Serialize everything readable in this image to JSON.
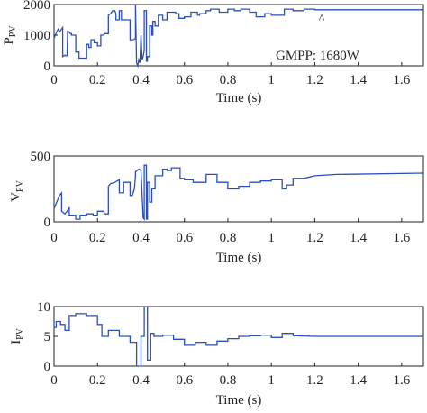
{
  "chart_data": [
    {
      "type": "line",
      "ylabel": "P",
      "ylabel_sub": "PV",
      "xlabel": "Time (s)",
      "xlim": [
        0,
        1.7
      ],
      "ylim": [
        0,
        2000
      ],
      "xticks": [
        0,
        0.2,
        0.4,
        0.6,
        0.8,
        1,
        1.2,
        1.4,
        1.6
      ],
      "xtick_labels": [
        "0",
        "0.2",
        "0.4",
        "0.6",
        "0.8",
        "1",
        "1.2",
        "1.4",
        "1.6"
      ],
      "yticks": [
        0,
        1000,
        2000
      ],
      "ytick_labels": [
        "0",
        "1000",
        "2000"
      ],
      "annotation": "GMPP: 1680W",
      "caret_marker": {
        "x": 1.23,
        "y": 1820,
        "symbol": "^"
      },
      "grid": false,
      "series": [
        {
          "color": "#2b4fb8",
          "x": [
            0,
            0.015,
            0.02,
            0.025,
            0.04,
            0.04,
            0.05,
            0.055,
            0.06,
            0.062,
            0.07,
            0.075,
            0.08,
            0.08,
            0.1,
            0.1,
            0.115,
            0.115,
            0.13,
            0.13,
            0.15,
            0.15,
            0.16,
            0.16,
            0.17,
            0.17,
            0.185,
            0.185,
            0.2,
            0.2,
            0.215,
            0.215,
            0.23,
            0.23,
            0.25,
            0.25,
            0.25,
            0.26,
            0.265,
            0.27,
            0.28,
            0.285,
            0.285,
            0.3,
            0.3,
            0.31,
            0.31,
            0.35,
            0.35,
            0.365,
            0.375,
            0.375,
            0.38,
            0.385,
            0.39,
            0.395,
            0.4,
            0.405,
            0.41,
            0.415,
            0.415,
            0.425,
            0.425,
            0.43,
            0.43,
            0.44,
            0.44,
            0.44,
            0.45,
            0.45,
            0.455,
            0.455,
            0.465,
            0.465,
            0.48,
            0.48,
            0.5,
            0.5,
            0.52,
            0.52,
            0.56,
            0.56,
            0.575,
            0.575,
            0.6,
            0.6,
            0.63,
            0.63,
            0.66,
            0.66,
            0.67,
            0.67,
            0.7,
            0.7,
            0.72,
            0.72,
            0.76,
            0.76,
            0.8,
            0.8,
            0.83,
            0.83,
            0.86,
            0.86,
            0.9,
            0.9,
            0.93,
            0.93,
            0.97,
            0.97,
            1.0,
            1.0,
            1.04,
            1.04,
            1.06,
            1.06,
            1.1,
            1.1,
            1.15,
            1.15,
            1.2,
            1.2,
            1.7
          ],
          "values": [
            900,
            1150,
            1200,
            1100,
            1250,
            300,
            350,
            320,
            330,
            1120,
            1100,
            1050,
            1050,
            1000,
            1000,
            450,
            450,
            250,
            250,
            250,
            250,
            700,
            700,
            600,
            600,
            850,
            850,
            750,
            750,
            650,
            650,
            1000,
            1000,
            1050,
            1050,
            1550,
            1650,
            1700,
            1750,
            1800,
            1800,
            1700,
            1500,
            1500,
            1800,
            1800,
            1500,
            1500,
            850,
            850,
            900,
            2000,
            100,
            0,
            200,
            100,
            1000,
            200,
            300,
            500,
            1800,
            1800,
            150,
            150,
            300,
            300,
            1300,
            1300,
            1300,
            1000,
            1000,
            1450,
            1450,
            1300,
            1300,
            1650,
            1650,
            1500,
            1500,
            1750,
            1750,
            1700,
            1700,
            1550,
            1550,
            1600,
            1600,
            1750,
            1750,
            1650,
            1650,
            1700,
            1700,
            1800,
            1800,
            1850,
            1850,
            1750,
            1750,
            1850,
            1850,
            1800,
            1800,
            1850,
            1850,
            1750,
            1750,
            1600,
            1600,
            1700,
            1700,
            1650,
            1650,
            1650,
            1650,
            1850,
            1850,
            1800,
            1800,
            1850,
            1850,
            1830,
            1830
          ]
        }
      ]
    },
    {
      "type": "line",
      "ylabel": "V",
      "ylabel_sub": "PV",
      "xlabel": "Time (s)",
      "xlim": [
        0,
        1.7
      ],
      "ylim": [
        0,
        500
      ],
      "xticks": [
        0,
        0.2,
        0.4,
        0.6,
        0.8,
        1,
        1.2,
        1.4,
        1.6
      ],
      "xtick_labels": [
        "0",
        "0.2",
        "0.4",
        "0.6",
        "0.8",
        "1",
        "1.2",
        "1.4",
        "1.6"
      ],
      "yticks": [
        0,
        500
      ],
      "ytick_labels": [
        "0",
        "500"
      ],
      "grid": false,
      "series": [
        {
          "color": "#2b4fb8",
          "x": [
            0,
            0.015,
            0.025,
            0.035,
            0.035,
            0.05,
            0.06,
            0.07,
            0.07,
            0.1,
            0.1,
            0.12,
            0.12,
            0.15,
            0.15,
            0.18,
            0.18,
            0.2,
            0.2,
            0.23,
            0.23,
            0.25,
            0.25,
            0.26,
            0.28,
            0.3,
            0.3,
            0.32,
            0.32,
            0.35,
            0.35,
            0.36,
            0.37,
            0.375,
            0.375,
            0.39,
            0.4,
            0.41,
            0.415,
            0.415,
            0.425,
            0.425,
            0.43,
            0.43,
            0.44,
            0.44,
            0.45,
            0.45,
            0.465,
            0.465,
            0.5,
            0.5,
            0.52,
            0.52,
            0.54,
            0.54,
            0.58,
            0.58,
            0.6,
            0.6,
            0.64,
            0.64,
            0.7,
            0.7,
            0.75,
            0.75,
            0.8,
            0.8,
            0.85,
            0.85,
            0.9,
            0.9,
            0.95,
            0.95,
            1.0,
            1.0,
            1.05,
            1.05,
            1.07,
            1.07,
            1.1,
            1.1,
            1.15,
            1.2,
            1.3,
            1.7
          ],
          "values": [
            100,
            160,
            200,
            220,
            80,
            60,
            80,
            110,
            50,
            50,
            20,
            20,
            50,
            50,
            60,
            60,
            50,
            50,
            80,
            80,
            60,
            60,
            270,
            290,
            300,
            320,
            220,
            220,
            300,
            300,
            200,
            200,
            250,
            350,
            380,
            400,
            390,
            30,
            20,
            430,
            430,
            20,
            20,
            300,
            300,
            150,
            150,
            250,
            250,
            350,
            350,
            400,
            400,
            390,
            390,
            410,
            410,
            330,
            330,
            320,
            320,
            300,
            300,
            360,
            360,
            300,
            300,
            250,
            250,
            270,
            270,
            300,
            300,
            310,
            310,
            320,
            320,
            250,
            250,
            280,
            280,
            330,
            330,
            350,
            360,
            370
          ]
        }
      ]
    },
    {
      "type": "line",
      "ylabel": "I",
      "ylabel_sub": "PV",
      "xlabel": "Time (s)",
      "xlim": [
        0,
        1.7
      ],
      "ylim": [
        0,
        10
      ],
      "xticks": [
        0,
        0.2,
        0.4,
        0.6,
        0.8,
        1,
        1.2,
        1.4,
        1.6
      ],
      "xtick_labels": [
        "0",
        "0.2",
        "0.4",
        "0.6",
        "0.8",
        "1",
        "1.2",
        "1.4",
        "1.6"
      ],
      "yticks": [
        0,
        5,
        10
      ],
      "ytick_labels": [
        "0",
        "5",
        "10"
      ],
      "grid": false,
      "series": [
        {
          "color": "#2b4fb8",
          "x": [
            0,
            0.01,
            0.01,
            0.03,
            0.03,
            0.05,
            0.05,
            0.07,
            0.07,
            0.1,
            0.1,
            0.15,
            0.15,
            0.2,
            0.2,
            0.22,
            0.22,
            0.25,
            0.25,
            0.3,
            0.3,
            0.35,
            0.35,
            0.38,
            0.38,
            0.4,
            0.4,
            0.415,
            0.415,
            0.43,
            0.43,
            0.445,
            0.445,
            0.46,
            0.46,
            0.5,
            0.5,
            0.55,
            0.55,
            0.6,
            0.6,
            0.65,
            0.65,
            0.7,
            0.7,
            0.75,
            0.75,
            0.8,
            0.8,
            0.85,
            0.85,
            0.9,
            0.9,
            0.95,
            0.95,
            1.0,
            1.0,
            1.05,
            1.05,
            1.1,
            1.1,
            1.2,
            1.7
          ],
          "values": [
            6.5,
            6.5,
            7.5,
            7.5,
            7,
            7,
            6,
            6,
            8.5,
            8.5,
            8.8,
            8.8,
            8.5,
            8.5,
            7,
            7,
            5,
            5,
            6,
            6,
            5,
            5,
            4,
            4,
            0,
            0,
            5,
            5,
            10,
            10,
            1,
            1,
            5.5,
            5.5,
            5,
            5,
            5.2,
            5.2,
            4.5,
            4.5,
            3.5,
            3.5,
            4,
            4,
            3.5,
            3.5,
            4.2,
            4.2,
            4.6,
            4.6,
            5,
            5,
            5.1,
            5.1,
            5.2,
            5.2,
            4.8,
            4.8,
            5.5,
            5.5,
            5.1,
            5.0,
            5.0
          ]
        }
      ]
    }
  ]
}
